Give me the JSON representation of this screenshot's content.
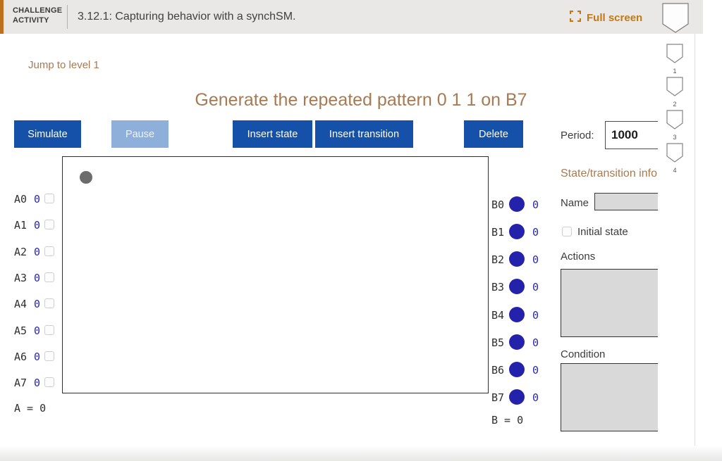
{
  "header": {
    "kicker_line1": "CHALLENGE",
    "kicker_line2": "ACTIVITY",
    "title": "3.12.1: Capturing behavior with a synchSM.",
    "fullscreen_label": "Full screen"
  },
  "jump_link_label": "Jump to level 1",
  "prompt_title": "Generate the repeated pattern 0 1 1 on B7",
  "toolbar": {
    "simulate_label": "Simulate",
    "pause_label": "Pause",
    "insert_state_label": "Insert state",
    "insert_transition_label": "Insert transition",
    "delete_label": "Delete",
    "period_label": "Period:",
    "period_value": "1000"
  },
  "panel": {
    "section_title": "State/transition info",
    "name_label": "Name",
    "name_value": "",
    "initial_state_label": "Initial state",
    "initial_state_checked": false,
    "actions_label": "Actions",
    "actions_value": "",
    "condition_label": "Condition",
    "condition_value": ""
  },
  "io": {
    "inputs": {
      "rows": [
        {
          "label": "A0",
          "value": "0"
        },
        {
          "label": "A1",
          "value": "0"
        },
        {
          "label": "A2",
          "value": "0"
        },
        {
          "label": "A3",
          "value": "0"
        },
        {
          "label": "A4",
          "value": "0"
        },
        {
          "label": "A5",
          "value": "0"
        },
        {
          "label": "A6",
          "value": "0"
        },
        {
          "label": "A7",
          "value": "0"
        }
      ],
      "summary": "A = 0"
    },
    "outputs": {
      "rows": [
        {
          "label": "B0",
          "value": "0"
        },
        {
          "label": "B1",
          "value": "0"
        },
        {
          "label": "B2",
          "value": "0"
        },
        {
          "label": "B3",
          "value": "0"
        },
        {
          "label": "B4",
          "value": "0"
        },
        {
          "label": "B5",
          "value": "0"
        },
        {
          "label": "B6",
          "value": "0"
        },
        {
          "label": "B7",
          "value": "0"
        }
      ],
      "summary": "B = 0"
    }
  },
  "levels": [
    "1",
    "2",
    "3",
    "4"
  ],
  "icons": {
    "fullscreen": "expand-icon",
    "header_badge": "shield-icon",
    "level_badge": "shield-icon",
    "initial_state_marker": "state-dot"
  },
  "colors": {
    "accent-orange": "#bf701d",
    "accent-orange-text": "#c4790e",
    "brown": "#a87a52",
    "button-blue": "#1551a8",
    "button-blue-disabled": "#8fafdb",
    "led-blue": "#2422ab",
    "value-blue": "#2929b0"
  }
}
